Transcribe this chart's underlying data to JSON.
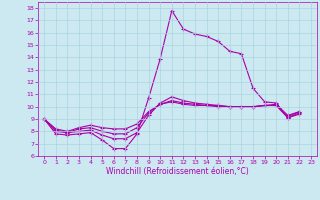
{
  "xlabel": "Windchill (Refroidissement éolien,°C)",
  "background_color": "#cce8f0",
  "line_color": "#aa00aa",
  "xlim": [
    -0.5,
    23.5
  ],
  "ylim": [
    6,
    18.5
  ],
  "xticks": [
    0,
    1,
    2,
    3,
    4,
    5,
    6,
    7,
    8,
    9,
    10,
    11,
    12,
    13,
    14,
    15,
    16,
    17,
    18,
    19,
    20,
    21,
    22,
    23
  ],
  "yticks": [
    6,
    7,
    8,
    9,
    10,
    11,
    12,
    13,
    14,
    15,
    16,
    17,
    18
  ],
  "lines": [
    [
      9.0,
      7.8,
      7.7,
      7.8,
      7.9,
      7.3,
      6.6,
      6.6,
      7.8,
      10.7,
      13.9,
      17.8,
      16.3,
      15.9,
      15.7,
      15.3,
      14.5,
      14.3,
      11.5,
      10.4,
      10.3,
      9.1,
      9.4
    ],
    [
      9.0,
      8.0,
      7.9,
      8.0,
      8.1,
      7.7,
      7.4,
      7.4,
      7.9,
      9.3,
      10.3,
      10.8,
      10.5,
      10.3,
      10.2,
      10.1,
      10.0,
      10.0,
      10.0,
      10.1,
      10.1,
      9.1,
      9.5
    ],
    [
      9.0,
      8.1,
      7.9,
      8.2,
      8.3,
      8.0,
      7.8,
      7.8,
      8.3,
      9.5,
      10.2,
      10.5,
      10.3,
      10.2,
      10.1,
      10.1,
      10.0,
      10.0,
      10.0,
      10.1,
      10.1,
      9.2,
      9.6
    ],
    [
      9.0,
      8.2,
      8.0,
      8.3,
      8.5,
      8.3,
      8.2,
      8.2,
      8.6,
      9.6,
      10.2,
      10.4,
      10.2,
      10.1,
      10.1,
      10.0,
      10.0,
      10.0,
      10.0,
      10.1,
      10.2,
      9.3,
      9.6
    ]
  ],
  "linestyles": [
    "-",
    "-",
    "-",
    "-"
  ],
  "figsize": [
    3.2,
    2.0
  ],
  "dpi": 100,
  "xlabel_fontsize": 5.5,
  "tick_fontsize": 4.5,
  "linewidth": 0.8,
  "markersize": 3,
  "grid_color": "#aad4e0",
  "grid_linewidth": 0.5
}
